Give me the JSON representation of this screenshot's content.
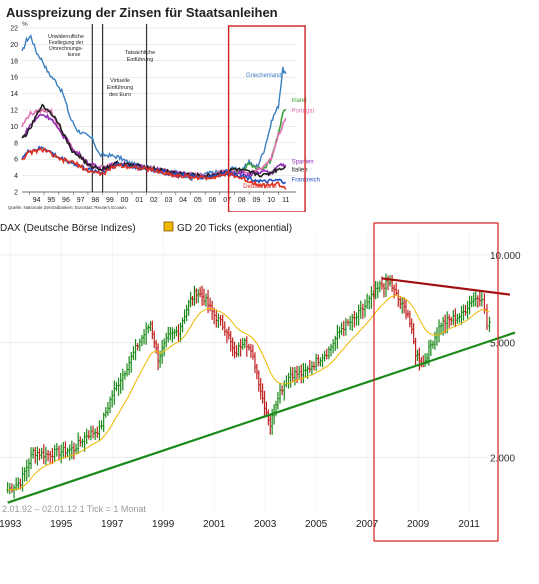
{
  "chart_data": [
    {
      "type": "line",
      "title": "Ausspreizung der Zinsen für Staatsanleihen",
      "ylabel": "%",
      "ylim": [
        2,
        22
      ],
      "yticks": [
        "2",
        "4",
        "6",
        "8",
        "10",
        "12",
        "14",
        "16",
        "18",
        "20",
        "22"
      ],
      "xlim": [
        1993.5,
        2012.2
      ],
      "xticks": [
        "94",
        "95",
        "96",
        "97",
        "98",
        "99",
        "00",
        "01",
        "02",
        "03",
        "04",
        "05",
        "06",
        "07",
        "08",
        "09",
        "10",
        "11"
      ],
      "annotations": {
        "fixing": "Unwiderrufliche Festlegung der Umrechnungs-kurse",
        "virtual": "Virtuelle Einführung des Euro",
        "actual": "Tatsächliche Einführung"
      },
      "event_lines": [
        1998.3,
        1999.0,
        2002.0
      ],
      "highlight_box": [
        2007.6,
        2012.0
      ],
      "source": "Quelle: Nationale Zentralbanken; Eurostat; Reuters Ecowin.",
      "series": [
        {
          "name": "Griechenland",
          "color": "#3a7fc0",
          "x": [
            1993.5,
            1993.8,
            1994.1,
            1994.5,
            1994.9,
            1995.3,
            1995.8,
            1996.3,
            1996.8,
            1997.3,
            1997.8,
            1998.3,
            1998.8,
            1999.3,
            2000,
            2001,
            2002,
            2003,
            2004,
            2005,
            2006,
            2007,
            2007.6,
            2008,
            2008.5,
            2009,
            2009.3,
            2009.6,
            2010,
            2010.3,
            2010.6,
            2011,
            2011.3,
            2011.5
          ],
          "y": [
            19,
            20.5,
            21,
            19,
            18,
            16.5,
            15.5,
            14,
            11,
            9.5,
            9,
            8.5,
            6.5,
            6.5,
            6.3,
            5.4,
            5.2,
            4.5,
            4.4,
            3.6,
            4.2,
            4.5,
            4.6,
            5,
            4.5,
            5.8,
            5.1,
            5.2,
            7,
            9,
            11,
            12.5,
            17,
            16.4
          ]
        },
        {
          "name": "Irland",
          "color": "#3aa03a",
          "x": [
            2007.6,
            2008,
            2008.5,
            2009,
            2009.5,
            2010,
            2010.5,
            2011,
            2011.3,
            2011.5
          ],
          "y": [
            4.5,
            4.6,
            4.4,
            5.5,
            5,
            4.8,
            6,
            9,
            11.8,
            12.1
          ]
        },
        {
          "name": "Portugal",
          "color": "#e070b0",
          "x": [
            1993.5,
            1994,
            1995,
            1995.5,
            1996,
            1997,
            1998,
            1999,
            2000,
            2002,
            2004,
            2006,
            2007.6,
            2008,
            2009,
            2010,
            2010.5,
            2011,
            2011.5
          ],
          "y": [
            10,
            11.5,
            12,
            11.8,
            10,
            7.2,
            5.3,
            5,
            5.5,
            5,
            4.2,
            4,
            4.5,
            4.4,
            4.3,
            5,
            6,
            9,
            11
          ]
        },
        {
          "name": "Spanien",
          "color": "#9030b0",
          "x": [
            1993.5,
            1994,
            1994.8,
            1995.5,
            1996,
            1996.5,
            1997,
            1997.5,
            1998,
            1999,
            2000,
            2002,
            2004,
            2006,
            2007.6,
            2008,
            2008.5,
            2009,
            2010,
            2010.5,
            2011,
            2011.5
          ],
          "y": [
            8.5,
            10,
            11.5,
            11,
            9.5,
            8.5,
            7,
            6.5,
            5.5,
            4.8,
            5.5,
            5,
            4.3,
            3.8,
            4.5,
            4.4,
            4.3,
            4.0,
            4.5,
            4.2,
            5.4,
            5.3
          ]
        },
        {
          "name": "Italien",
          "color": "#202020",
          "x": [
            1993.5,
            1994,
            1994.8,
            1995.3,
            1996,
            1996.5,
            1997,
            1997.5,
            1998,
            1999,
            2000,
            2002,
            2004,
            2006,
            2007.6,
            2008,
            2009,
            2010,
            2011,
            2011.5
          ],
          "y": [
            8.5,
            9.5,
            12.5,
            12,
            10.5,
            8.5,
            6.8,
            6.3,
            5.2,
            4.8,
            5.5,
            5,
            4.3,
            3.9,
            4.5,
            4.8,
            4.4,
            4.0,
            4.8,
            5.0
          ]
        },
        {
          "name": "Frankreich",
          "color": "#2050c0",
          "x": [
            1993.5,
            1994,
            1995,
            1996,
            1997,
            1998,
            1999,
            2000,
            2002,
            2004,
            2006,
            2007.6,
            2008,
            2009,
            2010,
            2011,
            2011.5
          ],
          "y": [
            6.2,
            7,
            7.4,
            6.2,
            5.5,
            4.7,
            4.4,
            5.4,
            4.8,
            4.1,
            3.8,
            4.3,
            4.2,
            3.7,
            3.2,
            3.4,
            3.2
          ]
        },
        {
          "name": "Deutschland",
          "color": "#e03020",
          "x": [
            1993.5,
            1994,
            1995,
            1996,
            1997,
            1998,
            1999,
            2000,
            2002,
            2004,
            2006,
            2007.6,
            2008,
            2009,
            2010,
            2011,
            2011.5
          ],
          "y": [
            6,
            6.8,
            7.2,
            6,
            5.6,
            4.6,
            4.2,
            5.3,
            4.8,
            4.0,
            3.7,
            4.2,
            4.0,
            3.3,
            2.8,
            3.0,
            2.3
          ]
        }
      ]
    },
    {
      "type": "line",
      "legend": [
        "DAX (Deutsche Börse Indizes)",
        "GD 20 Ticks (exponential)"
      ],
      "legend_colors": [
        "#1a6a1a",
        "#f0b800"
      ],
      "yticks": [
        "10.000",
        "5.000",
        "2.000"
      ],
      "ytick_values": [
        10000,
        5000,
        2000
      ],
      "yscale": "log",
      "ylim": [
        1300,
        12000
      ],
      "xticks": [
        "1993",
        "1995",
        "1997",
        "1999",
        "2001",
        "2003",
        "2005",
        "2007",
        "2009",
        "2011"
      ],
      "xlim": [
        1992.6,
        2012.8
      ],
      "caption": "2.01.92 – 02.01.12   1 Tick = 1 Monat",
      "highlight_box": [
        2007.5,
        2012.5
      ],
      "dax_path": {
        "x": [
          1992.9,
          1993.4,
          1993.9,
          1994.4,
          1995.0,
          1995.5,
          1996.0,
          1996.5,
          1997.0,
          1997.5,
          1998.0,
          1998.5,
          1998.8,
          1999.2,
          1999.6,
          2000.0,
          2000.3,
          2000.6,
          2001.0,
          2001.5,
          2001.8,
          2002.2,
          2002.6,
          2002.9,
          2003.2,
          2003.5,
          2004.0,
          2004.5,
          2005.0,
          2005.5,
          2006.0,
          2006.5,
          2007.0,
          2007.5,
          2007.9,
          2008.3,
          2008.6,
          2008.9,
          2009.2,
          2009.5,
          2009.9,
          2010.3,
          2010.7,
          2011.1,
          2011.5,
          2011.7,
          2011.9
        ],
        "y": [
          1550,
          1650,
          2100,
          2050,
          2100,
          2150,
          2400,
          2500,
          3300,
          4000,
          4900,
          5800,
          4400,
          5200,
          5500,
          6800,
          7500,
          7100,
          6200,
          5500,
          4500,
          5200,
          4200,
          3200,
          2600,
          3300,
          3900,
          3900,
          4300,
          4700,
          5600,
          6000,
          6800,
          7800,
          8000,
          6800,
          6300,
          4600,
          4200,
          4900,
          5800,
          6000,
          6200,
          7000,
          7200,
          5700,
          6000
        ]
      },
      "trendlines": [
        {
          "name": "Aufwärtstrend",
          "color": "#1a8a1a",
          "x": [
            1992.9,
            2012.8
          ],
          "y": [
            1400,
            5400
          ]
        },
        {
          "name": "Abwärtstrend",
          "color": "#a01010",
          "x": [
            2007.6,
            2012.6
          ],
          "y": [
            8300,
            7300
          ]
        }
      ]
    }
  ]
}
